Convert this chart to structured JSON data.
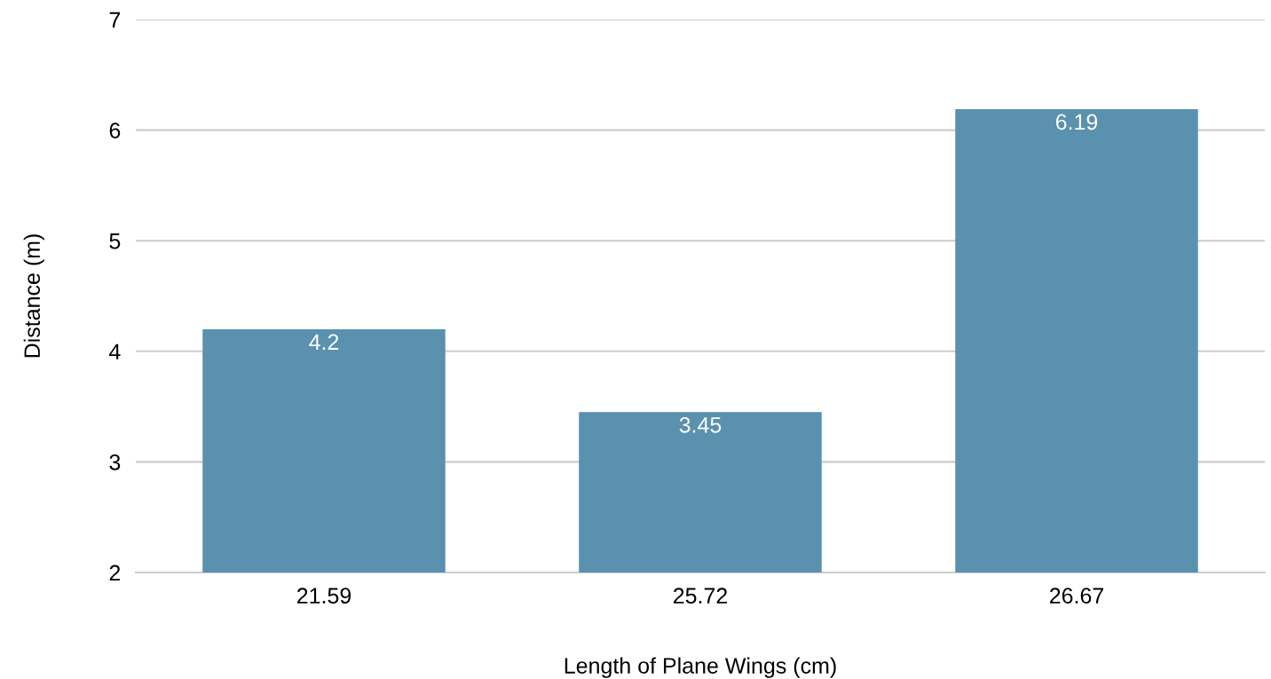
{
  "chart_data": {
    "type": "bar",
    "xlabel": "Length of Plane Wings (cm)",
    "ylabel": "Distance (m)",
    "categories": [
      "21.59",
      "25.72",
      "26.67"
    ],
    "values": [
      4.2,
      3.45,
      6.19
    ],
    "color": "#5a91ae",
    "ylim": [
      2,
      7
    ],
    "yticks": [
      2,
      3,
      4,
      5,
      6,
      7
    ],
    "grid": "y",
    "data_labels": true
  }
}
